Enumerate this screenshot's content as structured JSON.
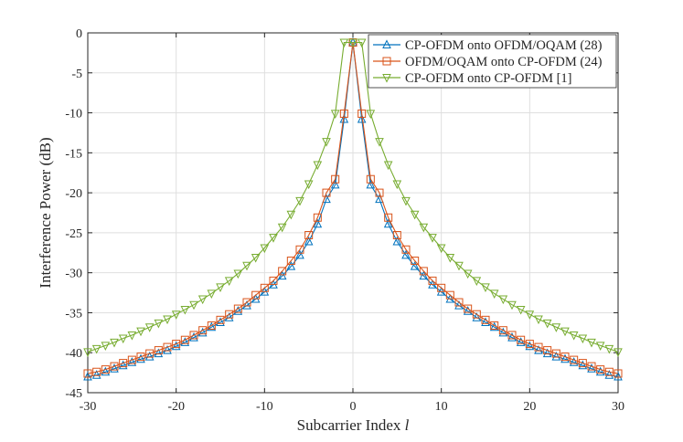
{
  "chart_data": {
    "type": "line",
    "title": "",
    "xlabel": "Subcarrier Index",
    "xlabel_var": "l",
    "ylabel": "Interference Power (dB)",
    "xlim": [
      -30,
      30
    ],
    "ylim": [
      -45,
      0
    ],
    "xticks": [
      -30,
      -20,
      -10,
      0,
      10,
      20,
      30
    ],
    "yticks": [
      0,
      -5,
      -10,
      -15,
      -20,
      -25,
      -30,
      -35,
      -40,
      -45
    ],
    "grid": true,
    "legend_position": "top-right",
    "series": [
      {
        "name": "CP-OFDM onto OFDM/OQAM (28)",
        "color": "#0072BD",
        "marker": "triangle-up",
        "x": [
          -30,
          -29,
          -28,
          -27,
          -26,
          -25,
          -24,
          -23,
          -22,
          -21,
          -20,
          -19,
          -18,
          -17,
          -16,
          -15,
          -14,
          -13,
          -12,
          -11,
          -10,
          -9,
          -8,
          -7,
          -6,
          -5,
          -4,
          -3,
          -2,
          -1,
          0,
          1,
          2,
          3,
          4,
          5,
          6,
          7,
          8,
          9,
          10,
          11,
          12,
          13,
          14,
          15,
          16,
          17,
          18,
          19,
          20,
          21,
          22,
          23,
          24,
          25,
          26,
          27,
          28,
          29,
          30
        ],
        "y": [
          -43.0,
          -42.8,
          -42.4,
          -42.0,
          -41.6,
          -41.2,
          -40.8,
          -40.5,
          -40.1,
          -39.7,
          -39.2,
          -38.7,
          -38.1,
          -37.5,
          -36.8,
          -36.2,
          -35.6,
          -34.8,
          -34.1,
          -33.3,
          -32.4,
          -31.5,
          -30.4,
          -29.2,
          -27.8,
          -26.1,
          -23.9,
          -20.8,
          -19.0,
          -10.8,
          -1.2,
          -10.8,
          -19.0,
          -20.8,
          -23.9,
          -26.1,
          -27.8,
          -29.2,
          -30.4,
          -31.5,
          -32.4,
          -33.3,
          -34.1,
          -34.8,
          -35.6,
          -36.2,
          -36.8,
          -37.5,
          -38.1,
          -38.7,
          -39.2,
          -39.7,
          -40.1,
          -40.5,
          -40.8,
          -41.2,
          -41.6,
          -42.0,
          -42.4,
          -42.8,
          -43.0
        ]
      },
      {
        "name": "OFDM/OQAM onto CP-OFDM (24)",
        "color": "#D95319",
        "marker": "square",
        "x": [
          -30,
          -29,
          -28,
          -27,
          -26,
          -25,
          -24,
          -23,
          -22,
          -21,
          -20,
          -19,
          -18,
          -17,
          -16,
          -15,
          -14,
          -13,
          -12,
          -11,
          -10,
          -9,
          -8,
          -7,
          -6,
          -5,
          -4,
          -3,
          -2,
          -1,
          0,
          1,
          2,
          3,
          4,
          5,
          6,
          7,
          8,
          9,
          10,
          11,
          12,
          13,
          14,
          15,
          16,
          17,
          18,
          19,
          20,
          21,
          22,
          23,
          24,
          25,
          26,
          27,
          28,
          29,
          30
        ],
        "y": [
          -42.6,
          -42.4,
          -42.1,
          -41.7,
          -41.3,
          -40.9,
          -40.5,
          -40.1,
          -39.7,
          -39.3,
          -38.9,
          -38.4,
          -37.8,
          -37.2,
          -36.6,
          -35.9,
          -35.2,
          -34.5,
          -33.7,
          -32.8,
          -31.9,
          -31.0,
          -29.8,
          -28.5,
          -27.1,
          -25.3,
          -23.1,
          -20.0,
          -18.3,
          -10.1,
          -1.2,
          -10.1,
          -18.3,
          -20.0,
          -23.1,
          -25.3,
          -27.1,
          -28.5,
          -29.8,
          -31.0,
          -31.9,
          -32.8,
          -33.7,
          -34.5,
          -35.2,
          -35.9,
          -36.6,
          -37.2,
          -37.8,
          -38.4,
          -38.9,
          -39.3,
          -39.7,
          -40.1,
          -40.5,
          -40.9,
          -41.3,
          -41.7,
          -42.1,
          -42.4,
          -42.6
        ]
      },
      {
        "name": "CP-OFDM onto CP-OFDM [1]",
        "color": "#77AC30",
        "marker": "triangle-down",
        "x": [
          -30,
          -29,
          -28,
          -27,
          -26,
          -25,
          -24,
          -23,
          -22,
          -21,
          -20,
          -19,
          -18,
          -17,
          -16,
          -15,
          -14,
          -13,
          -12,
          -11,
          -10,
          -9,
          -8,
          -7,
          -6,
          -5,
          -4,
          -3,
          -2,
          -1,
          0,
          1,
          2,
          3,
          4,
          5,
          6,
          7,
          8,
          9,
          10,
          11,
          12,
          13,
          14,
          15,
          16,
          17,
          18,
          19,
          20,
          21,
          22,
          23,
          24,
          25,
          26,
          27,
          28,
          29,
          30
        ],
        "y": [
          -39.9,
          -39.5,
          -39.1,
          -38.7,
          -38.2,
          -37.8,
          -37.3,
          -36.8,
          -36.3,
          -35.8,
          -35.2,
          -34.6,
          -34.0,
          -33.3,
          -32.6,
          -31.8,
          -31.0,
          -30.1,
          -29.1,
          -28.1,
          -26.9,
          -25.6,
          -24.3,
          -22.7,
          -21.0,
          -18.9,
          -16.5,
          -13.6,
          -10.1,
          -1.2,
          -1.2,
          -1.2,
          -10.1,
          -13.6,
          -16.5,
          -18.9,
          -21.0,
          -22.7,
          -24.3,
          -25.6,
          -26.9,
          -28.1,
          -29.1,
          -30.1,
          -31.0,
          -31.8,
          -32.6,
          -33.3,
          -34.0,
          -34.6,
          -35.2,
          -35.8,
          -36.3,
          -36.8,
          -37.3,
          -37.8,
          -38.2,
          -38.7,
          -39.1,
          -39.5,
          -39.9
        ]
      }
    ]
  }
}
